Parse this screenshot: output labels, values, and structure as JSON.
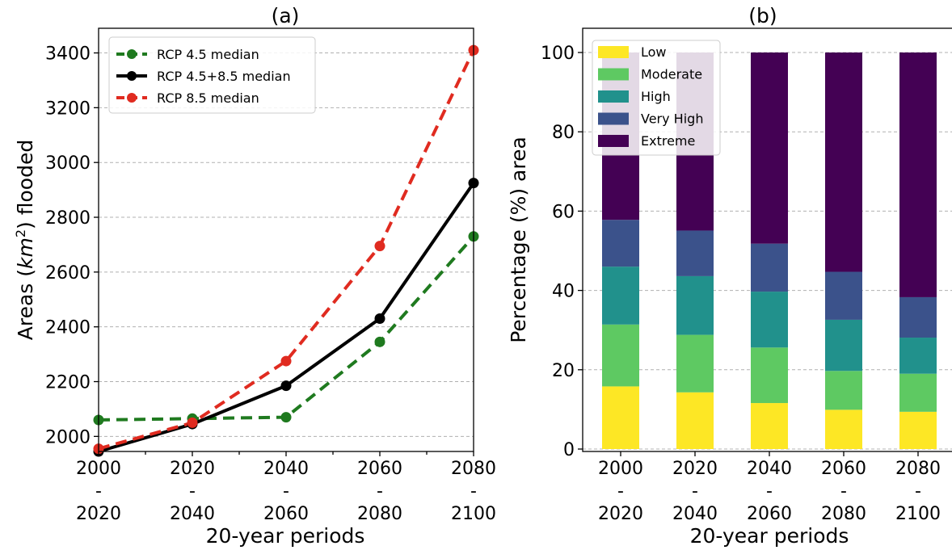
{
  "chart_data": [
    {
      "type": "line",
      "title": "(a)",
      "xlabel": "20-year periods",
      "ylabel_prefix": "Areas (",
      "ylabel_math": "km",
      "ylabel_sup": "2",
      "ylabel_suffix": ") flooded",
      "categories": [
        [
          "2000",
          "-",
          "2020"
        ],
        [
          "2020",
          "-",
          "2040"
        ],
        [
          "2040",
          "-",
          "2060"
        ],
        [
          "2060",
          "-",
          "2080"
        ],
        [
          "2080",
          "-",
          "2100"
        ]
      ],
      "ylim": [
        1945,
        3490
      ],
      "yticks": [
        2000,
        2200,
        2400,
        2600,
        2800,
        3000,
        3200,
        3400
      ],
      "grid": "y",
      "legend_position": "upper-left",
      "series": [
        {
          "name": "RCP 4.5 median",
          "color": "#1f7a1f",
          "dashed": true,
          "values": [
            2060,
            2065,
            2070,
            2345,
            2730
          ]
        },
        {
          "name": "RCP 4.5+8.5 median",
          "color": "#000000",
          "dashed": false,
          "values": [
            1945,
            2045,
            2185,
            2430,
            2925
          ]
        },
        {
          "name": "RCP 8.5 median",
          "color": "#e02b20",
          "dashed": true,
          "values": [
            1955,
            2050,
            2275,
            2695,
            3410
          ]
        }
      ]
    },
    {
      "type": "bar",
      "stacked": true,
      "title": "(b)",
      "xlabel": "20-year periods",
      "ylabel": "Percentage (%) area",
      "categories": [
        [
          "2000",
          "-",
          "2020"
        ],
        [
          "2020",
          "-",
          "2040"
        ],
        [
          "2040",
          "-",
          "2060"
        ],
        [
          "2060",
          "-",
          "2080"
        ],
        [
          "2080",
          "-",
          "2100"
        ]
      ],
      "ylim": [
        0,
        100
      ],
      "yticks": [
        0,
        20,
        40,
        60,
        80,
        100
      ],
      "grid": "y",
      "legend_position": "upper-left",
      "series": [
        {
          "name": "Low",
          "color": "#fde725",
          "values": [
            15.8,
            14.3,
            11.6,
            9.9,
            9.4
          ]
        },
        {
          "name": "Moderate",
          "color": "#5ec962",
          "values": [
            15.6,
            14.5,
            14.0,
            9.8,
            9.6
          ]
        },
        {
          "name": "High",
          "color": "#21918c",
          "values": [
            14.6,
            14.8,
            14.1,
            12.9,
            9.1
          ]
        },
        {
          "name": "Very High",
          "color": "#3b528b",
          "values": [
            11.8,
            11.5,
            12.1,
            12.1,
            10.2
          ]
        },
        {
          "name": "Extreme",
          "color": "#440154",
          "values": [
            42.2,
            44.9,
            48.2,
            55.3,
            61.7
          ]
        }
      ]
    }
  ]
}
